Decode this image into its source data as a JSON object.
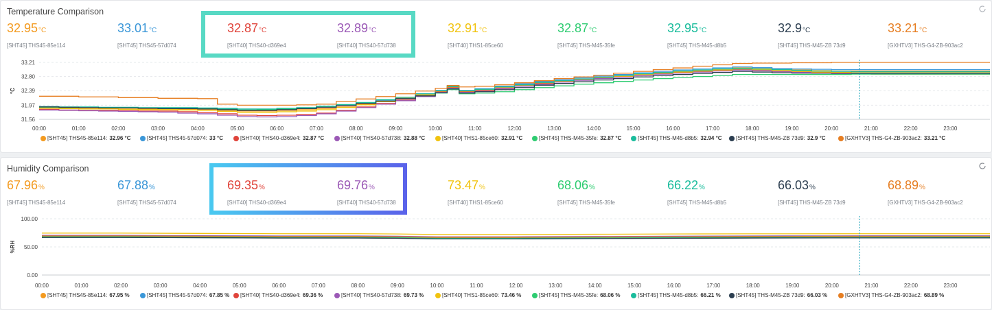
{
  "colors": {
    "s1": "#f39a1f",
    "s2": "#3b97d8",
    "s3": "#e0443b",
    "s4": "#9b59b6",
    "s5": "#f1c30f",
    "s6": "#2ecc71",
    "s7": "#1abc9c",
    "s8": "#2c3e50",
    "s9": "#e67e22"
  },
  "temperature": {
    "title": "Temperature Comparison",
    "unit": "°C",
    "sensors": [
      {
        "value": "32.95",
        "name": "[SHT45] THS45-85e114",
        "color": "#f39a1f"
      },
      {
        "value": "33.01",
        "name": "[SHT45] THS45-57d074",
        "color": "#3b97d8"
      },
      {
        "value": "32.87",
        "name": "[SHT40] THS40-d369e4",
        "color": "#e0443b"
      },
      {
        "value": "32.89",
        "name": "[SHT40] THS40-57d738",
        "color": "#9b59b6"
      },
      {
        "value": "32.91",
        "name": "[SHT40] THS1-85ce60",
        "color": "#f1c30f"
      },
      {
        "value": "32.87",
        "name": "[SHT45] THS-M45-35fe",
        "color": "#2ecc71"
      },
      {
        "value": "32.95",
        "name": "[SHT45] THS-M45-d8b5",
        "color": "#1abc9c"
      },
      {
        "value": "32.9",
        "name": "[SHT45] THS-M45-ZB 73d9",
        "color": "#2c3e50"
      },
      {
        "value": "33.21",
        "name": "[GXHTV3] THS-G4-ZB-903ac2",
        "color": "#e67e22"
      }
    ],
    "legend": [
      {
        "label": "[SHT45] THS45-85e114:",
        "value": "32.96 °C"
      },
      {
        "label": "[SHT45] THS45-57d074:",
        "value": "33 °C"
      },
      {
        "label": "[SHT40] THS40-d369e4:",
        "value": "32.87 °C"
      },
      {
        "label": "[SHT40] THS40-57d738:",
        "value": "32.88 °C"
      },
      {
        "label": "[SHT40] THS1-85ce60:",
        "value": "32.91 °C"
      },
      {
        "label": "[SHT45] THS-M45-35fe:",
        "value": "32.87 °C"
      },
      {
        "label": "[SHT45] THS-M45-d8b5:",
        "value": "32.94 °C"
      },
      {
        "label": "[SHT45] THS-M45-ZB 73d9:",
        "value": "32.9 °C"
      },
      {
        "label": "[GXHTV3] THS-G4-ZB-903ac2:",
        "value": "33.21 °C"
      }
    ]
  },
  "humidity": {
    "title": "Humidity Comparison",
    "unit": "%",
    "sensors": [
      {
        "value": "67.96",
        "name": "[SHT45] THS45-85e114",
        "color": "#f39a1f"
      },
      {
        "value": "67.88",
        "name": "[SHT45] THS45-57d074",
        "color": "#3b97d8"
      },
      {
        "value": "69.35",
        "name": "[SHT40] THS40-d369e4",
        "color": "#e0443b"
      },
      {
        "value": "69.76",
        "name": "[SHT40] THS40-57d738",
        "color": "#9b59b6"
      },
      {
        "value": "73.47",
        "name": "[SHT40] THS1-85ce60",
        "color": "#f1c30f"
      },
      {
        "value": "68.06",
        "name": "[SHT45] THS-M45-35fe",
        "color": "#2ecc71"
      },
      {
        "value": "66.22",
        "name": "[SHT45] THS-M45-d8b5",
        "color": "#1abc9c"
      },
      {
        "value": "66.03",
        "name": "[SHT45] THS-M45-ZB 73d9",
        "color": "#2c3e50"
      },
      {
        "value": "68.89",
        "name": "[GXHTV3] THS-G4-ZB-903ac2",
        "color": "#e67e22"
      }
    ],
    "legend": [
      {
        "label": "[SHT45] THS45-85e114:",
        "value": "67.95 %"
      },
      {
        "label": "[SHT45] THS45-57d074:",
        "value": "67.85 %"
      },
      {
        "label": "[SHT40] THS40-d369e4:",
        "value": "69.36 %"
      },
      {
        "label": "[SHT40] THS40-57d738:",
        "value": "69.73 %"
      },
      {
        "label": "[SHT40] THS1-85ce60:",
        "value": "73.46 %"
      },
      {
        "label": "[SHT45] THS-M45-35fe:",
        "value": "68.06 %"
      },
      {
        "label": "[SHT45] THS-M45-d8b5:",
        "value": "66.21 %"
      },
      {
        "label": "[SHT45] THS-M45-ZB 73d9:",
        "value": "66.03 %"
      },
      {
        "label": "[GXHTV3] THS-G4-ZB-903ac2:",
        "value": "68.89 %"
      }
    ]
  },
  "chart_data": [
    {
      "type": "line",
      "title": "Temperature Comparison",
      "ylabel": "°C",
      "xlabel": "",
      "x_ticks": [
        "00:00",
        "01:00",
        "02:00",
        "03:00",
        "04:00",
        "05:00",
        "06:00",
        "07:00",
        "08:00",
        "09:00",
        "10:00",
        "11:00",
        "12:00",
        "13:00",
        "14:00",
        "15:00",
        "16:00",
        "17:00",
        "18:00",
        "19:00",
        "20:00",
        "21:00",
        "22:00",
        "23:00"
      ],
      "y_ticks": [
        "31.56",
        "31.97",
        "32.39",
        "32.80",
        "33.21"
      ],
      "xlim": [
        0,
        24
      ],
      "ylim": [
        31.56,
        33.21
      ],
      "grid": true,
      "legend_position": "bottom",
      "cursor_x": 20.7,
      "x": [
        0,
        0.5,
        1,
        1.5,
        2,
        2.5,
        3,
        3.5,
        4,
        4.5,
        5,
        5.5,
        6,
        6.5,
        7,
        7.5,
        8,
        8.5,
        9,
        9.5,
        10,
        10.3,
        10.6,
        11,
        11.5,
        12,
        12.5,
        13,
        13.5,
        14,
        14.5,
        15,
        15.5,
        16,
        16.5,
        17,
        17.5,
        18,
        18.5,
        19,
        19.5,
        20,
        20.5,
        21,
        21.5,
        22,
        22.5,
        23,
        23.5,
        24
      ],
      "series": [
        {
          "name": "[SHT45] THS45-85e114",
          "values": [
            31.9,
            31.88,
            31.87,
            31.87,
            31.86,
            31.86,
            31.85,
            31.85,
            31.85,
            31.82,
            31.8,
            31.8,
            31.82,
            31.84,
            31.87,
            31.92,
            32.0,
            32.08,
            32.17,
            32.27,
            32.38,
            32.5,
            32.38,
            32.42,
            32.5,
            32.56,
            32.64,
            32.68,
            32.73,
            32.78,
            32.82,
            32.88,
            32.92,
            32.95,
            32.98,
            33.0,
            33.05,
            33.03,
            33.0,
            32.99,
            32.97,
            32.96,
            32.96,
            32.96,
            32.96,
            32.96,
            32.96,
            32.96,
            32.96,
            32.96
          ]
        },
        {
          "name": "[SHT45] THS45-57d074",
          "values": [
            31.92,
            31.91,
            31.9,
            31.9,
            31.89,
            31.89,
            31.88,
            31.88,
            31.88,
            31.86,
            31.83,
            31.83,
            31.85,
            31.88,
            31.92,
            31.97,
            32.04,
            32.12,
            32.2,
            32.3,
            32.4,
            32.53,
            32.4,
            32.45,
            32.52,
            32.59,
            32.66,
            32.71,
            32.76,
            32.81,
            32.86,
            32.91,
            32.95,
            32.99,
            33.02,
            33.05,
            33.08,
            33.06,
            33.03,
            33.02,
            33.01,
            33.0,
            33.0,
            33.0,
            33.0,
            33.0,
            33.0,
            33.0,
            33.0,
            33.0
          ]
        },
        {
          "name": "[SHT40] THS40-d369e4",
          "values": [
            31.85,
            31.83,
            31.82,
            31.82,
            31.81,
            31.8,
            31.8,
            31.78,
            31.76,
            31.72,
            31.68,
            31.67,
            31.68,
            31.7,
            31.74,
            31.82,
            31.92,
            32.02,
            32.12,
            32.25,
            32.36,
            32.48,
            32.36,
            32.4,
            32.47,
            32.53,
            32.6,
            32.65,
            32.7,
            32.75,
            32.79,
            32.84,
            32.88,
            32.91,
            32.94,
            32.97,
            33.0,
            32.98,
            32.95,
            32.93,
            32.91,
            32.89,
            32.88,
            32.87,
            32.87,
            32.87,
            32.87,
            32.87,
            32.87,
            32.87
          ]
        },
        {
          "name": "[SHT40] THS40-57d738",
          "values": [
            31.83,
            31.82,
            31.81,
            31.8,
            31.79,
            31.78,
            31.77,
            31.74,
            31.72,
            31.68,
            31.64,
            31.63,
            31.64,
            31.67,
            31.72,
            31.8,
            31.9,
            32.0,
            32.1,
            32.22,
            32.34,
            32.46,
            32.34,
            32.38,
            32.45,
            32.52,
            32.58,
            32.64,
            32.69,
            32.74,
            32.78,
            32.83,
            32.87,
            32.9,
            32.93,
            32.96,
            32.99,
            32.97,
            32.94,
            32.92,
            32.9,
            32.89,
            32.88,
            32.88,
            32.88,
            32.88,
            32.88,
            32.88,
            32.88,
            32.88
          ]
        },
        {
          "name": "[SHT40] THS1-85ce60",
          "values": [
            31.88,
            31.87,
            31.86,
            31.86,
            31.85,
            31.84,
            31.84,
            31.83,
            31.82,
            31.79,
            31.76,
            31.76,
            31.78,
            31.8,
            31.84,
            31.9,
            31.98,
            32.07,
            32.16,
            32.27,
            32.38,
            32.5,
            32.38,
            32.42,
            32.49,
            32.55,
            32.62,
            32.67,
            32.72,
            32.77,
            32.81,
            32.86,
            32.9,
            32.93,
            32.96,
            32.99,
            33.02,
            33.0,
            32.97,
            32.95,
            32.93,
            32.92,
            32.91,
            32.91,
            32.91,
            32.91,
            32.91,
            32.91,
            32.91,
            32.91
          ]
        },
        {
          "name": "[SHT45] THS-M45-35fe",
          "values": [
            31.91,
            31.9,
            31.9,
            31.89,
            31.89,
            31.88,
            31.88,
            31.87,
            31.87,
            31.85,
            31.83,
            31.84,
            31.86,
            31.88,
            31.92,
            31.96,
            32.02,
            32.09,
            32.16,
            32.24,
            32.32,
            32.42,
            32.3,
            32.32,
            32.36,
            32.42,
            32.48,
            32.53,
            32.58,
            32.62,
            32.66,
            32.7,
            32.74,
            32.77,
            32.8,
            32.83,
            32.86,
            32.86,
            32.86,
            32.86,
            32.86,
            32.86,
            32.87,
            32.87,
            32.87,
            32.87,
            32.87,
            32.87,
            32.87,
            32.87
          ]
        },
        {
          "name": "[SHT45] THS-M45-d8b5",
          "values": [
            31.93,
            31.92,
            31.92,
            31.91,
            31.91,
            31.9,
            31.9,
            31.9,
            31.89,
            31.88,
            31.86,
            31.86,
            31.88,
            31.9,
            31.94,
            31.99,
            32.05,
            32.13,
            32.2,
            32.3,
            32.39,
            32.51,
            32.39,
            32.43,
            32.5,
            32.56,
            32.63,
            32.68,
            32.73,
            32.78,
            32.83,
            32.88,
            32.92,
            32.96,
            32.99,
            33.02,
            33.04,
            33.02,
            33.0,
            32.98,
            32.96,
            32.95,
            32.94,
            32.94,
            32.94,
            32.94,
            32.94,
            32.94,
            32.94,
            32.94
          ]
        },
        {
          "name": "[SHT45] THS-M45-ZB 73d9",
          "values": [
            31.92,
            31.91,
            31.9,
            31.89,
            31.89,
            31.88,
            31.87,
            31.87,
            31.86,
            31.84,
            31.82,
            31.82,
            31.84,
            31.87,
            31.91,
            31.96,
            32.02,
            32.09,
            32.16,
            32.24,
            32.33,
            32.44,
            32.32,
            32.36,
            32.42,
            32.48,
            32.55,
            32.6,
            32.65,
            32.7,
            32.74,
            32.79,
            32.83,
            32.86,
            32.89,
            32.92,
            32.95,
            32.93,
            32.91,
            32.9,
            32.9,
            32.9,
            32.9,
            32.9,
            32.9,
            32.9,
            32.9,
            32.9,
            32.9,
            32.9
          ]
        },
        {
          "name": "[GXHTV3] THS-G4-ZB-903ac2",
          "values": [
            32.23,
            32.23,
            32.21,
            32.21,
            32.19,
            32.19,
            32.17,
            32.17,
            32.16,
            32.0,
            31.97,
            31.97,
            31.97,
            31.98,
            32.0,
            32.08,
            32.15,
            32.22,
            32.3,
            32.38,
            32.46,
            32.54,
            32.5,
            32.52,
            32.56,
            32.62,
            32.68,
            32.74,
            32.79,
            32.84,
            32.9,
            32.95,
            33.0,
            33.05,
            33.1,
            33.14,
            33.18,
            33.19,
            33.19,
            33.2,
            33.2,
            33.21,
            33.21,
            33.21,
            33.21,
            33.21,
            33.21,
            33.21,
            33.21,
            33.21
          ]
        }
      ]
    },
    {
      "type": "line",
      "title": "Humidity Comparison",
      "ylabel": "%RH",
      "xlabel": "",
      "x_ticks": [
        "00:00",
        "01:00",
        "02:00",
        "03:00",
        "04:00",
        "05:00",
        "06:00",
        "07:00",
        "08:00",
        "09:00",
        "10:00",
        "11:00",
        "12:00",
        "13:00",
        "14:00",
        "15:00",
        "16:00",
        "17:00",
        "18:00",
        "19:00",
        "20:00",
        "21:00",
        "22:00",
        "23:00"
      ],
      "y_ticks": [
        "0.00",
        "50.00",
        "100.00"
      ],
      "xlim": [
        0,
        24
      ],
      "ylim": [
        0,
        100
      ],
      "grid": true,
      "legend_position": "bottom",
      "cursor_x": 20.7,
      "x": [
        0,
        2,
        4,
        6,
        8,
        9,
        10,
        12,
        14,
        16,
        18,
        20,
        22,
        24
      ],
      "series": [
        {
          "name": "[SHT45] THS45-85e114",
          "values": [
            69,
            69,
            68.5,
            68,
            68,
            67.5,
            66,
            66,
            66.5,
            67,
            67.5,
            68,
            68,
            67.95
          ]
        },
        {
          "name": "[SHT45] THS45-57d074",
          "values": [
            68.5,
            68.5,
            68,
            67.5,
            67.5,
            67,
            65.5,
            65.5,
            66,
            66.5,
            67,
            67.8,
            67.9,
            67.85
          ]
        },
        {
          "name": "[SHT40] THS40-d369e4",
          "values": [
            70,
            70,
            69.5,
            69,
            69,
            68.5,
            67.5,
            67.5,
            68,
            68.5,
            69,
            69.3,
            69.4,
            69.36
          ]
        },
        {
          "name": "[SHT40] THS40-57d738",
          "values": [
            70.5,
            70.5,
            70,
            69.5,
            69.5,
            69,
            68,
            68,
            68.5,
            69,
            69.5,
            69.7,
            69.8,
            69.73
          ]
        },
        {
          "name": "[SHT40] THS1-85ce60",
          "values": [
            74.5,
            74.5,
            74,
            73.5,
            73.5,
            73,
            72,
            72,
            72.5,
            73,
            73.3,
            73.4,
            73.5,
            73.46
          ]
        },
        {
          "name": "[SHT45] THS-M45-35fe",
          "values": [
            68.5,
            68.5,
            68,
            67.5,
            67.5,
            67,
            66,
            66,
            66.5,
            67,
            67.5,
            68,
            68.1,
            68.06
          ]
        },
        {
          "name": "[SHT45] THS-M45-d8b5",
          "values": [
            67,
            67,
            66.5,
            66,
            66,
            65.5,
            64.5,
            64.5,
            65,
            65.5,
            66,
            66.2,
            66.2,
            66.21
          ]
        },
        {
          "name": "[SHT45] THS-M45-ZB 73d9",
          "values": [
            66.8,
            66.8,
            66.3,
            65.8,
            65.8,
            65.3,
            64.2,
            64.2,
            64.8,
            65.3,
            65.8,
            66,
            66,
            66.03
          ]
        },
        {
          "name": "[GXHTV3] THS-G4-ZB-903ac2",
          "values": [
            69.5,
            69.5,
            69,
            68.5,
            68.5,
            68,
            67,
            67,
            67.5,
            68,
            68.5,
            68.8,
            68.9,
            68.89
          ]
        }
      ]
    }
  ]
}
